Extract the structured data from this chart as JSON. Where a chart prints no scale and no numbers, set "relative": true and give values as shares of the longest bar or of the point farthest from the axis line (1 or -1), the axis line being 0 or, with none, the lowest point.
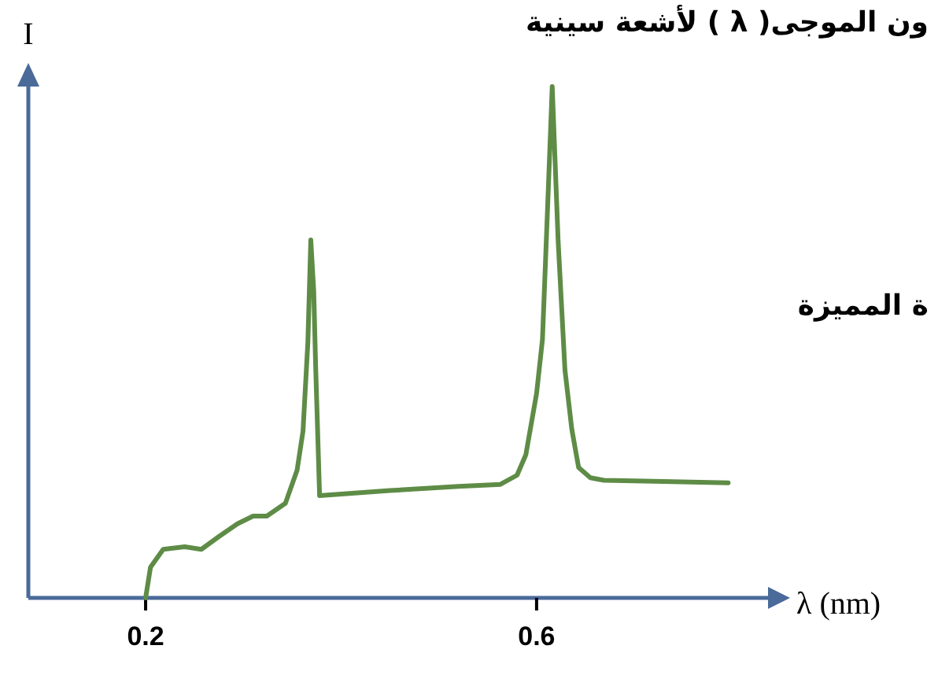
{
  "chart_data": {
    "type": "line",
    "title": "ون الموجى( λ ) لأشعة سينية",
    "ylabel": "I",
    "xlabel": "λ (nm)",
    "relative": true,
    "xlim": [
      0.08,
      0.84
    ],
    "xticks": [
      0.2,
      0.6
    ],
    "annotations": [
      "ة المميزة"
    ],
    "series": [
      {
        "color": "#5e8c46",
        "x": [
          0.2,
          0.205,
          0.218,
          0.24,
          0.257,
          0.275,
          0.294,
          0.31,
          0.324,
          0.343,
          0.355,
          0.361,
          0.366,
          0.369,
          0.372,
          0.374,
          0.378,
          0.45,
          0.52,
          0.563,
          0.58,
          0.589,
          0.6,
          0.606,
          0.612,
          0.616,
          0.622,
          0.629,
          0.636,
          0.643,
          0.655,
          0.669,
          0.72,
          0.796
        ],
        "values": [
          0,
          0.06,
          0.095,
          0.1,
          0.095,
          0.12,
          0.145,
          0.16,
          0.16,
          0.185,
          0.25,
          0.326,
          0.5,
          0.7,
          0.6,
          0.45,
          0.2,
          0.21,
          0.218,
          0.222,
          0.24,
          0.28,
          0.4,
          0.505,
          0.8,
          1,
          0.7,
          0.446,
          0.33,
          0.255,
          0.235,
          0.23,
          0.228,
          0.225
        ]
      }
    ]
  }
}
